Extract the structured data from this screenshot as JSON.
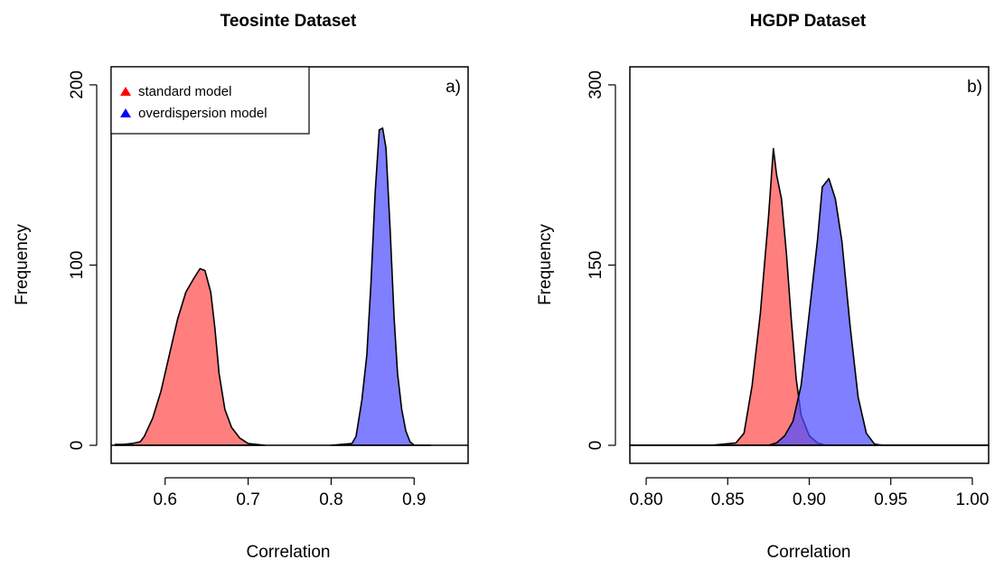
{
  "chart_data": [
    {
      "type": "area",
      "panel_tag": "a)",
      "title": "Teosinte Dataset",
      "xlabel": "Correlation",
      "ylabel": "Frequency",
      "xlim": [
        0.535,
        0.965
      ],
      "ylim": [
        -10,
        210
      ],
      "xticks": [
        0.6,
        0.7,
        0.8,
        0.9
      ],
      "xtick_labels": [
        "0.6",
        "0.7",
        "0.8",
        "0.9"
      ],
      "yticks": [
        0,
        100,
        200
      ],
      "ytick_labels": [
        "0",
        "100",
        "200"
      ],
      "legend": {
        "position": "top-left",
        "entries": [
          {
            "label": "standard model",
            "color": "#ff0000"
          },
          {
            "label": "overdispersion model",
            "color": "#0000ff"
          }
        ]
      },
      "series": [
        {
          "name": "standard model",
          "color": "#ff4d4d",
          "points": [
            [
              0.54,
              0.5
            ],
            [
              0.55,
              0.5
            ],
            [
              0.56,
              1
            ],
            [
              0.57,
              2
            ],
            [
              0.575,
              5
            ],
            [
              0.585,
              15
            ],
            [
              0.595,
              30
            ],
            [
              0.605,
              50
            ],
            [
              0.615,
              70
            ],
            [
              0.625,
              85
            ],
            [
              0.635,
              93
            ],
            [
              0.642,
              98
            ],
            [
              0.648,
              97
            ],
            [
              0.655,
              85
            ],
            [
              0.66,
              65
            ],
            [
              0.665,
              40
            ],
            [
              0.672,
              20
            ],
            [
              0.68,
              10
            ],
            [
              0.69,
              4
            ],
            [
              0.7,
              1
            ],
            [
              0.72,
              0
            ]
          ]
        },
        {
          "name": "overdispersion model",
          "color": "#4d4dff",
          "points": [
            [
              0.8,
              0
            ],
            [
              0.825,
              1
            ],
            [
              0.83,
              5
            ],
            [
              0.837,
              25
            ],
            [
              0.843,
              50
            ],
            [
              0.848,
              90
            ],
            [
              0.853,
              140
            ],
            [
              0.858,
              175
            ],
            [
              0.862,
              176
            ],
            [
              0.866,
              165
            ],
            [
              0.871,
              120
            ],
            [
              0.876,
              70
            ],
            [
              0.88,
              40
            ],
            [
              0.885,
              20
            ],
            [
              0.89,
              8
            ],
            [
              0.895,
              2
            ],
            [
              0.9,
              0
            ],
            [
              0.92,
              0
            ]
          ]
        }
      ]
    },
    {
      "type": "area",
      "panel_tag": "b)",
      "title": "HGDP Dataset",
      "xlabel": "Correlation",
      "ylabel": "Frequency",
      "xlim": [
        0.79,
        1.01
      ],
      "ylim": [
        -15,
        315
      ],
      "xticks": [
        0.8,
        0.85,
        0.9,
        0.95,
        1.0
      ],
      "xtick_labels": [
        "0.80",
        "0.85",
        "0.90",
        "0.95",
        "1.00"
      ],
      "yticks": [
        0,
        150,
        300
      ],
      "ytick_labels": [
        "0",
        "150",
        "300"
      ],
      "series": [
        {
          "name": "standard model",
          "color": "#ff4d4d",
          "points": [
            [
              0.79,
              0
            ],
            [
              0.84,
              0
            ],
            [
              0.855,
              2
            ],
            [
              0.86,
              10
            ],
            [
              0.865,
              50
            ],
            [
              0.87,
              110
            ],
            [
              0.875,
              190
            ],
            [
              0.878,
              247
            ],
            [
              0.88,
              225
            ],
            [
              0.883,
              205
            ],
            [
              0.886,
              160
            ],
            [
              0.889,
              105
            ],
            [
              0.892,
              55
            ],
            [
              0.895,
              25
            ],
            [
              0.9,
              8
            ],
            [
              0.905,
              2
            ],
            [
              0.91,
              0
            ],
            [
              1.01,
              0
            ]
          ]
        },
        {
          "name": "overdispersion model",
          "color": "#4d4dff",
          "points": [
            [
              0.79,
              0
            ],
            [
              0.875,
              0
            ],
            [
              0.88,
              2
            ],
            [
              0.885,
              8
            ],
            [
              0.89,
              20
            ],
            [
              0.895,
              50
            ],
            [
              0.9,
              110
            ],
            [
              0.905,
              170
            ],
            [
              0.908,
              215
            ],
            [
              0.912,
              222
            ],
            [
              0.916,
              205
            ],
            [
              0.92,
              170
            ],
            [
              0.925,
              100
            ],
            [
              0.93,
              40
            ],
            [
              0.935,
              10
            ],
            [
              0.94,
              1
            ],
            [
              0.945,
              0
            ],
            [
              1.01,
              0
            ]
          ]
        }
      ]
    }
  ]
}
